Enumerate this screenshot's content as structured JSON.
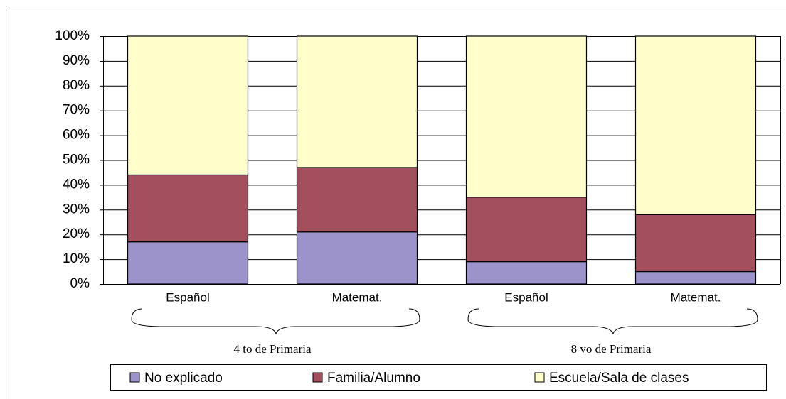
{
  "chart_data": {
    "type": "stacked_bar",
    "categories": [
      "Español",
      "Matemat.",
      "Español",
      "Matemat."
    ],
    "groups": [
      "4 to de Primaria",
      "8 vo de Primaria"
    ],
    "series": [
      {
        "name": "No explicado",
        "color": "#9b93c9",
        "values": [
          17,
          21,
          9,
          5
        ]
      },
      {
        "name": "Familia/Alumno",
        "color": "#a34f5d",
        "values": [
          27,
          26,
          26,
          23
        ]
      },
      {
        "name": "Escuela/Sala de clases",
        "color": "#ffffcc",
        "values": [
          56,
          53,
          65,
          72
        ]
      }
    ],
    "ylim": [
      0,
      100
    ],
    "yticks": [
      {
        "value": 0,
        "label": "0%"
      },
      {
        "value": 10,
        "label": "10%"
      },
      {
        "value": 20,
        "label": "20%"
      },
      {
        "value": 30,
        "label": "30%"
      },
      {
        "value": 40,
        "label": "40%"
      },
      {
        "value": 50,
        "label": "50%"
      },
      {
        "value": 60,
        "label": "60%"
      },
      {
        "value": 70,
        "label": "70%"
      },
      {
        "value": 80,
        "label": "80%"
      },
      {
        "value": 90,
        "label": "90%"
      },
      {
        "value": 100,
        "label": "100%"
      }
    ],
    "grid": true,
    "legend": "bottom"
  }
}
